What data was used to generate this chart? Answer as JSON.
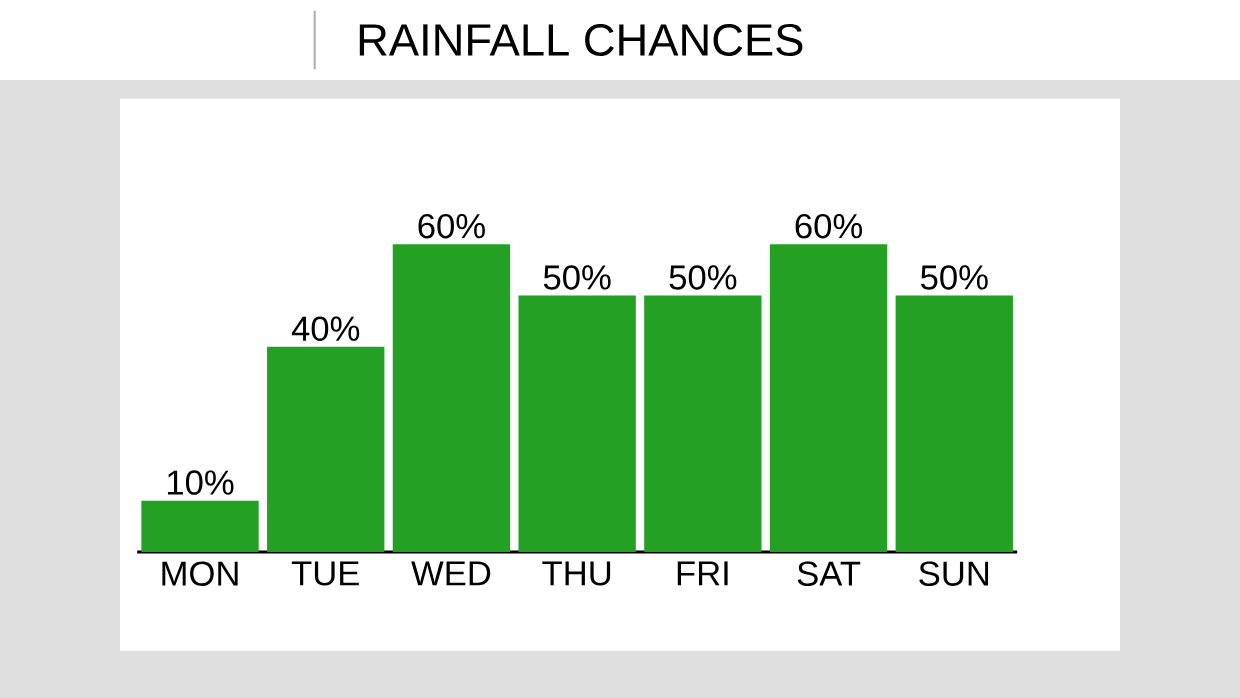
{
  "chart_data": {
    "type": "bar",
    "title": "RAINFALL CHANCES",
    "categories": [
      "MON",
      "TUE",
      "WED",
      "THU",
      "FRI",
      "SAT",
      "SUN"
    ],
    "values": [
      10,
      40,
      60,
      50,
      50,
      60,
      50
    ],
    "value_labels": [
      "10%",
      "40%",
      "60%",
      "50%",
      "50%",
      "60%",
      "50%"
    ],
    "color": "#24a024"
  }
}
